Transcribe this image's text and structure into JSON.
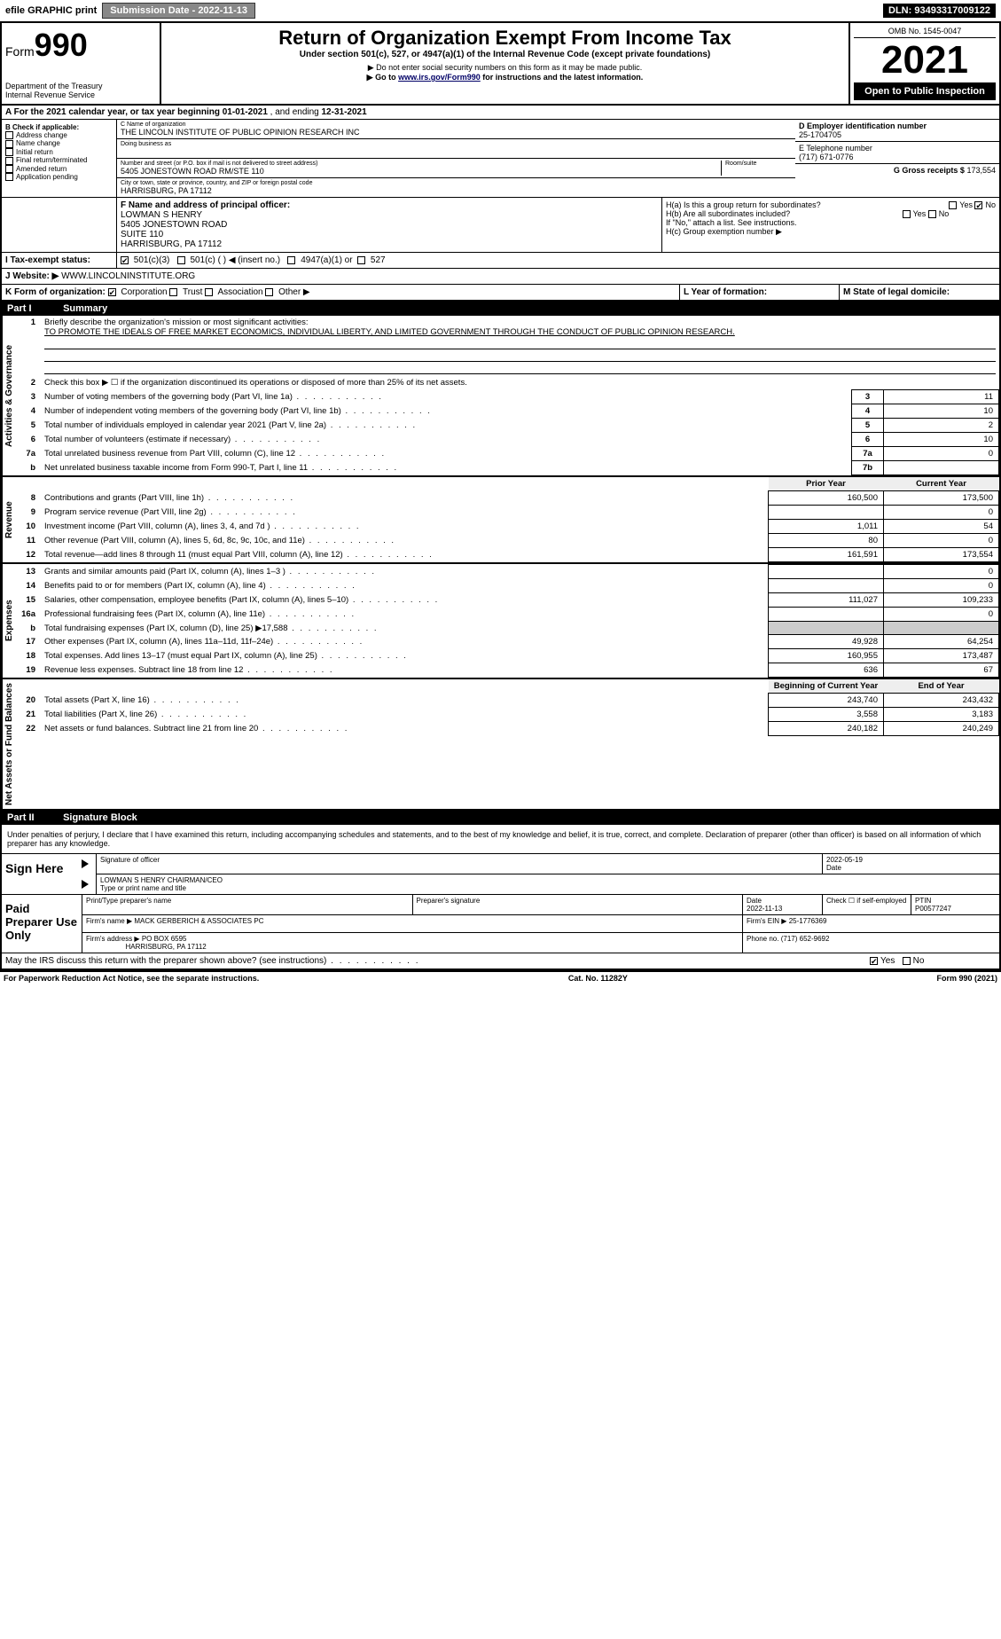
{
  "topbar": {
    "efile": "efile GRAPHIC print",
    "submission": "Submission Date - 2022-11-13",
    "dln": "DLN: 93493317009122"
  },
  "header": {
    "form_prefix": "Form",
    "form_number": "990",
    "dept": "Department of the Treasury",
    "irs": "Internal Revenue Service",
    "title": "Return of Organization Exempt From Income Tax",
    "subtitle": "Under section 501(c), 527, or 4947(a)(1) of the Internal Revenue Code (except private foundations)",
    "note1": "▶ Do not enter social security numbers on this form as it may be made public.",
    "note2_pre": "▶ Go to ",
    "note2_link": "www.irs.gov/Form990",
    "note2_post": " for instructions and the latest information.",
    "omb": "OMB No. 1545-0047",
    "year": "2021",
    "o2p": "Open to Public Inspection"
  },
  "sectionA": {
    "text_pre": "A For the 2021 calendar year, or tax year beginning ",
    "begin": "01-01-2021",
    "mid": " , and ending ",
    "end": "12-31-2021"
  },
  "boxB": {
    "label": "B Check if applicable:",
    "items": [
      "Address change",
      "Name change",
      "Initial return",
      "Final return/terminated",
      "Amended return",
      "Application pending"
    ]
  },
  "boxC": {
    "label": "C Name of organization",
    "name": "THE LINCOLN INSTITUTE OF PUBLIC OPINION RESEARCH INC",
    "dba_label": "Doing business as",
    "addr_label": "Number and street (or P.O. box if mail is not delivered to street address)",
    "room_label": "Room/suite",
    "addr": "5405 JONESTOWN ROAD RM/STE 110",
    "city_label": "City or town, state or province, country, and ZIP or foreign postal code",
    "city": "HARRISBURG, PA  17112"
  },
  "boxD": {
    "label": "D Employer identification number",
    "val": "25-1704705"
  },
  "boxE": {
    "label": "E Telephone number",
    "val": "(717) 671-0776"
  },
  "boxG": {
    "label": "G Gross receipts $",
    "val": "173,554"
  },
  "boxF": {
    "label": "F  Name and address of principal officer:",
    "name": "LOWMAN S HENRY",
    "l1": "5405 JONESTOWN ROAD",
    "l2": "SUITE 110",
    "l3": "HARRISBURG, PA  17112"
  },
  "boxH": {
    "a": "H(a)  Is this a group return for subordinates?",
    "b": "H(b)  Are all subordinates included?",
    "note": "If \"No,\" attach a list. See instructions.",
    "c": "H(c)  Group exemption number ▶",
    "yes": "Yes",
    "no": "No"
  },
  "boxI": {
    "label": "I  Tax-exempt status:",
    "o1": "501(c)(3)",
    "o2": "501(c) (  ) ◀ (insert no.)",
    "o3": "4947(a)(1) or",
    "o4": "527"
  },
  "boxJ": {
    "label": "J  Website: ▶",
    "val": "WWW.LINCOLNINSTITUTE.ORG"
  },
  "boxK": {
    "label": "K Form of organization:",
    "o1": "Corporation",
    "o2": "Trust",
    "o3": "Association",
    "o4": "Other ▶"
  },
  "boxL": {
    "label": "L Year of formation:"
  },
  "boxM": {
    "label": "M State of legal domicile:"
  },
  "part1": {
    "hdr": "Part I",
    "title": "Summary",
    "l1_label": "Briefly describe the organization's mission or most significant activities:",
    "l1_text": "TO PROMOTE THE IDEALS OF FREE MARKET ECONOMICS, INDIVIDUAL LIBERTY, AND LIMITED GOVERNMENT THROUGH THE CONDUCT OF PUBLIC OPINION RESEARCH.",
    "l2": "Check this box ▶ ☐ if the organization discontinued its operations or disposed of more than 25% of its net assets.",
    "lines_ag": [
      {
        "n": "3",
        "t": "Number of voting members of the governing body (Part VI, line 1a)",
        "bn": "3",
        "v": "11"
      },
      {
        "n": "4",
        "t": "Number of independent voting members of the governing body (Part VI, line 1b)",
        "bn": "4",
        "v": "10"
      },
      {
        "n": "5",
        "t": "Total number of individuals employed in calendar year 2021 (Part V, line 2a)",
        "bn": "5",
        "v": "2"
      },
      {
        "n": "6",
        "t": "Total number of volunteers (estimate if necessary)",
        "bn": "6",
        "v": "10"
      },
      {
        "n": "7a",
        "t": "Total unrelated business revenue from Part VIII, column (C), line 12",
        "bn": "7a",
        "v": "0"
      },
      {
        "n": "b",
        "t": "Net unrelated business taxable income from Form 990-T, Part I, line 11",
        "bn": "7b",
        "v": ""
      }
    ],
    "col_prior": "Prior Year",
    "col_current": "Current Year",
    "col_boy": "Beginning of Current Year",
    "col_eoy": "End of Year",
    "rev": [
      {
        "n": "8",
        "t": "Contributions and grants (Part VIII, line 1h)",
        "p": "160,500",
        "c": "173,500"
      },
      {
        "n": "9",
        "t": "Program service revenue (Part VIII, line 2g)",
        "p": "",
        "c": "0"
      },
      {
        "n": "10",
        "t": "Investment income (Part VIII, column (A), lines 3, 4, and 7d )",
        "p": "1,011",
        "c": "54"
      },
      {
        "n": "11",
        "t": "Other revenue (Part VIII, column (A), lines 5, 6d, 8c, 9c, 10c, and 11e)",
        "p": "80",
        "c": "0"
      },
      {
        "n": "12",
        "t": "Total revenue—add lines 8 through 11 (must equal Part VIII, column (A), line 12)",
        "p": "161,591",
        "c": "173,554"
      }
    ],
    "exp": [
      {
        "n": "13",
        "t": "Grants and similar amounts paid (Part IX, column (A), lines 1–3 )",
        "p": "",
        "c": "0"
      },
      {
        "n": "14",
        "t": "Benefits paid to or for members (Part IX, column (A), line 4)",
        "p": "",
        "c": "0"
      },
      {
        "n": "15",
        "t": "Salaries, other compensation, employee benefits (Part IX, column (A), lines 5–10)",
        "p": "111,027",
        "c": "109,233"
      },
      {
        "n": "16a",
        "t": "Professional fundraising fees (Part IX, column (A), line 11e)",
        "p": "",
        "c": "0"
      },
      {
        "n": "b",
        "t": "Total fundraising expenses (Part IX, column (D), line 25) ▶17,588",
        "p": "shade",
        "c": "shade"
      },
      {
        "n": "17",
        "t": "Other expenses (Part IX, column (A), lines 11a–11d, 11f–24e)",
        "p": "49,928",
        "c": "64,254"
      },
      {
        "n": "18",
        "t": "Total expenses. Add lines 13–17 (must equal Part IX, column (A), line 25)",
        "p": "160,955",
        "c": "173,487"
      },
      {
        "n": "19",
        "t": "Revenue less expenses. Subtract line 18 from line 12",
        "p": "636",
        "c": "67"
      }
    ],
    "na": [
      {
        "n": "20",
        "t": "Total assets (Part X, line 16)",
        "p": "243,740",
        "c": "243,432"
      },
      {
        "n": "21",
        "t": "Total liabilities (Part X, line 26)",
        "p": "3,558",
        "c": "3,183"
      },
      {
        "n": "22",
        "t": "Net assets or fund balances. Subtract line 21 from line 20",
        "p": "240,182",
        "c": "240,249"
      }
    ],
    "tab_ag": "Activities & Governance",
    "tab_rev": "Revenue",
    "tab_exp": "Expenses",
    "tab_na": "Net Assets or Fund Balances"
  },
  "part2": {
    "hdr": "Part II",
    "title": "Signature Block",
    "decl": "Under penalties of perjury, I declare that I have examined this return, including accompanying schedules and statements, and to the best of my knowledge and belief, it is true, correct, and complete. Declaration of preparer (other than officer) is based on all information of which preparer has any knowledge.",
    "sign_here": "Sign Here",
    "sig_officer": "Signature of officer",
    "sig_date": "2022-05-19",
    "date_lbl": "Date",
    "officer_name": "LOWMAN S HENRY CHAIRMAN/CEO",
    "officer_type": "Type or print name and title",
    "paid": "Paid Preparer Use Only",
    "prep_name_lbl": "Print/Type preparer's name",
    "prep_sig_lbl": "Preparer's signature",
    "prep_date_lbl": "Date",
    "prep_date": "2022-11-13",
    "check_lbl": "Check ☐ if self-employed",
    "ptin_lbl": "PTIN",
    "ptin": "P00577247",
    "firm_name_lbl": "Firm's name    ▶",
    "firm_name": "MACK GERBERICH & ASSOCIATES PC",
    "firm_ein_lbl": "Firm's EIN ▶",
    "firm_ein": "25-1776369",
    "firm_addr_lbl": "Firm's address ▶",
    "firm_addr1": "PO BOX 6595",
    "firm_addr2": "HARRISBURG, PA  17112",
    "phone_lbl": "Phone no.",
    "phone": "(717) 652-9692",
    "may_irs": "May the IRS discuss this return with the preparer shown above? (see instructions)",
    "yes": "Yes",
    "no": "No"
  },
  "footer": {
    "pra": "For Paperwork Reduction Act Notice, see the separate instructions.",
    "cat": "Cat. No. 11282Y",
    "form": "Form 990 (2021)"
  },
  "colors": {
    "black": "#000000",
    "grey_btn": "#888888",
    "shade": "#cccccc",
    "link": "#000066"
  }
}
